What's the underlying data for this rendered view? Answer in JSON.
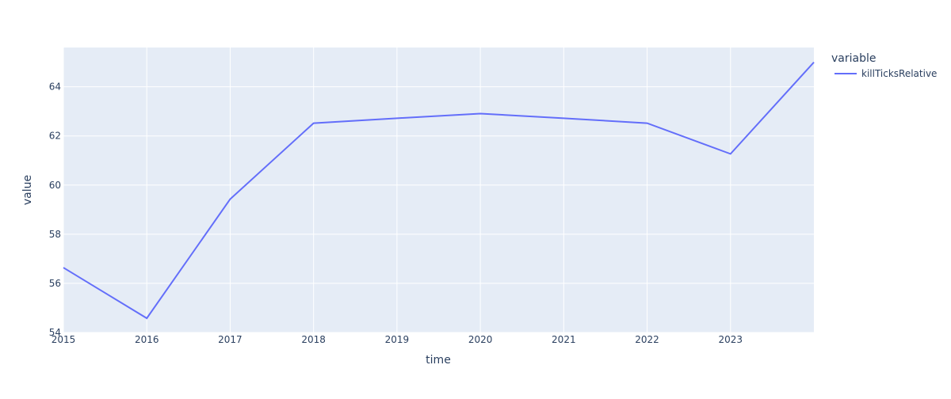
{
  "chart_data": {
    "type": "line",
    "x": [
      2015,
      2016,
      2017,
      2018,
      2019,
      2020,
      2021,
      2022,
      2023,
      2024
    ],
    "series": [
      {
        "name": "killTicksRelative",
        "color": "#636efa",
        "values": [
          56.64,
          54.58,
          59.43,
          62.52,
          62.72,
          62.91,
          62.72,
          62.52,
          61.27,
          65.0
        ]
      }
    ],
    "xlim": [
      2015,
      2024
    ],
    "xticks": [
      2015,
      2016,
      2017,
      2018,
      2019,
      2020,
      2021,
      2022,
      2023
    ],
    "ylim": [
      54,
      65.6
    ],
    "yticks": [
      54,
      56,
      58,
      60,
      62,
      64
    ],
    "x_label": "time",
    "y_label": "value",
    "legend_title": "variable",
    "grid": true,
    "legend_position": "right"
  }
}
